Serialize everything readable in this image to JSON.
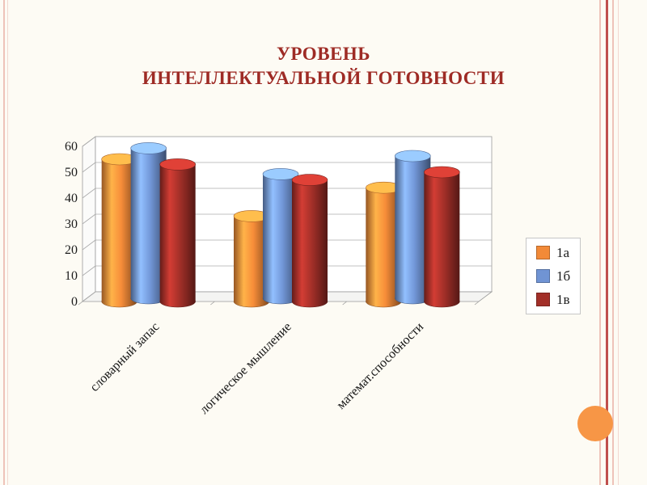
{
  "slide": {
    "title_line1": "УРОВЕНЬ",
    "title_line2": "ИНТЕЛЛЕКТУАЛЬНОЙ ГОТОВНОСТИ",
    "title_color": "#9E2B25",
    "background_color": "#FDFBF4",
    "accent_circle_color": "#F79646",
    "edge_line_color_light": "#EEC3B9",
    "edge_line_color_strong": "#C0504D"
  },
  "chart_data": {
    "type": "bar",
    "style": "3d-cylinder",
    "title": "",
    "categories": [
      "словарный запас",
      "логическое мышление",
      "математ.способности"
    ],
    "series": [
      {
        "name": "1а",
        "color": "#F28A38",
        "values": [
          55,
          33,
          44
        ]
      },
      {
        "name": "1б",
        "color": "#7094D4",
        "values": [
          58,
          48,
          55
        ]
      },
      {
        "name": "1в",
        "color": "#A22F28",
        "values": [
          53,
          47,
          50
        ]
      }
    ],
    "ylim": [
      0,
      60
    ],
    "ytick_step": 10,
    "grid": true,
    "legend_position": "right"
  }
}
